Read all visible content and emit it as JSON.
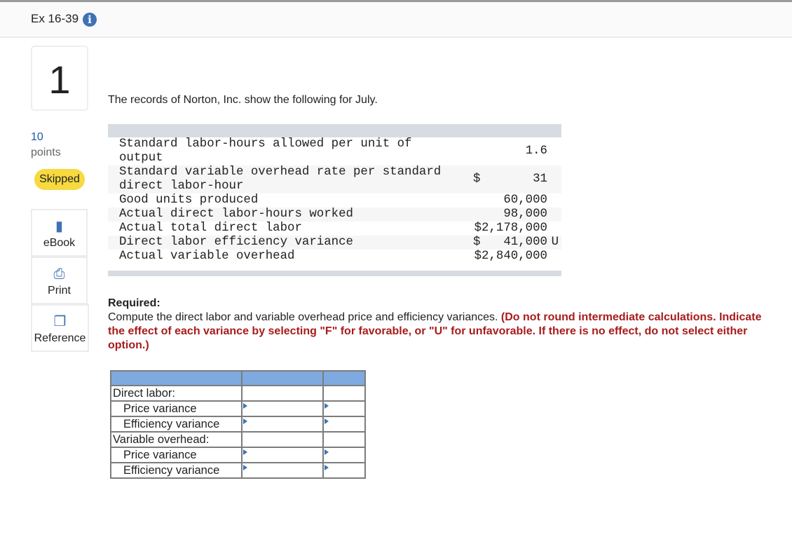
{
  "header": {
    "exercise": "Ex 16-39",
    "info_icon": "info-icon"
  },
  "question": {
    "number": "1",
    "points": "10",
    "points_label": "points",
    "status": "Skipped"
  },
  "tools": [
    {
      "label": "eBook",
      "icon": "book-icon"
    },
    {
      "label": "Print",
      "icon": "printer-icon"
    },
    {
      "label": "Reference",
      "icon": "copy-icon"
    }
  ],
  "intro": "The records of Norton, Inc. show the following for July.",
  "data_table": [
    {
      "label": "Standard labor-hours allowed per unit of output",
      "dollar": "",
      "value": "1.6",
      "flag": ""
    },
    {
      "label": "Standard variable overhead rate per standard direct labor-hour",
      "dollar": "$",
      "value": "31",
      "flag": ""
    },
    {
      "label": "Good units produced",
      "dollar": "",
      "value": "60,000",
      "flag": ""
    },
    {
      "label": "Actual direct labor-hours worked",
      "dollar": "",
      "value": "98,000",
      "flag": ""
    },
    {
      "label": "Actual total direct labor",
      "dollar": "",
      "value": "$2,178,000",
      "flag": ""
    },
    {
      "label": "Direct labor efficiency variance",
      "dollar": "$",
      "value": "41,000",
      "flag": "U"
    },
    {
      "label": "Actual variable overhead",
      "dollar": "",
      "value": "$2,840,000",
      "flag": ""
    }
  ],
  "required": {
    "heading": "Required:",
    "text": "Compute the direct labor and variable overhead price and efficiency variances. ",
    "instruction": "(Do not round intermediate calculations. Indicate the effect of each variance by selecting \"F\" for favorable, or \"U\" for unfavorable. If there is no effect, do not select either option.)"
  },
  "answer_table": {
    "rows": [
      {
        "label": "Direct labor:",
        "indent": false,
        "input": false,
        "value": "",
        "effect": ""
      },
      {
        "label": "Price variance",
        "indent": true,
        "input": true,
        "value": "",
        "effect": ""
      },
      {
        "label": "Efficiency variance",
        "indent": true,
        "input": true,
        "value": "",
        "effect": ""
      },
      {
        "label": "Variable overhead:",
        "indent": false,
        "input": false,
        "value": "",
        "effect": ""
      },
      {
        "label": "Price variance",
        "indent": true,
        "input": true,
        "value": "",
        "effect": ""
      },
      {
        "label": "Efficiency variance",
        "indent": true,
        "input": true,
        "value": "",
        "effect": ""
      }
    ]
  },
  "colors": {
    "accent": "#3f72b5",
    "skipped": "#f7d940",
    "table_header": "#7eaadf",
    "instruction": "#a81c1c"
  }
}
